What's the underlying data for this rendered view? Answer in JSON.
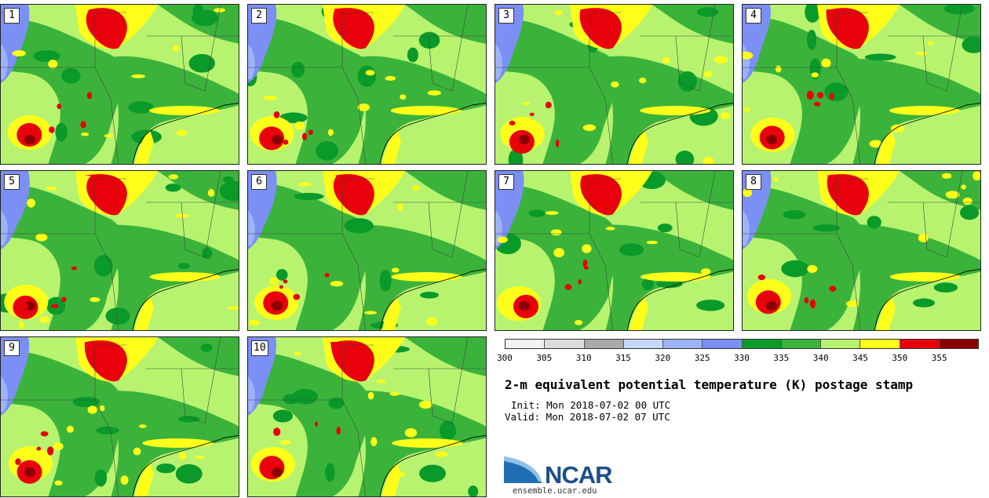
{
  "colors": {
    "c340": "#b7f36f",
    "c335": "#3bb33b",
    "c330": "#0a9a2a",
    "c345": "#ffff1a",
    "c350": "#e8000b",
    "c355": "#8a0000",
    "c325": "#7b8ff5",
    "c320": "#9db3f8",
    "c315": "#c7d8fb",
    "c310": "#a9a9a9",
    "c305": "#dcdcdc",
    "c300": "#f2f2f2"
  },
  "panels": [
    "1",
    "2",
    "3",
    "4",
    "5",
    "6",
    "7",
    "8",
    "9",
    "10"
  ],
  "colorbar": {
    "segment_colors": [
      "#f2f2f2",
      "#dcdcdc",
      "#a9a9a9",
      "#c7d8fb",
      "#9db3f8",
      "#7b8ff5",
      "#0a9a2a",
      "#3bb33b",
      "#b7f36f",
      "#ffff1a",
      "#e8000b",
      "#8a0000"
    ],
    "tick_labels": [
      "300",
      "305",
      "310",
      "315",
      "320",
      "325",
      "330",
      "335",
      "340",
      "345",
      "350",
      "355"
    ]
  },
  "title": "2-m equivalent potential temperature (K) postage stamp",
  "init": "Init: Mon 2018-07-02 00 UTC",
  "valid": "Valid: Mon 2018-07-02 07 UTC",
  "logo": {
    "text": "NCAR",
    "url": "ensemble.ucar.edu"
  }
}
